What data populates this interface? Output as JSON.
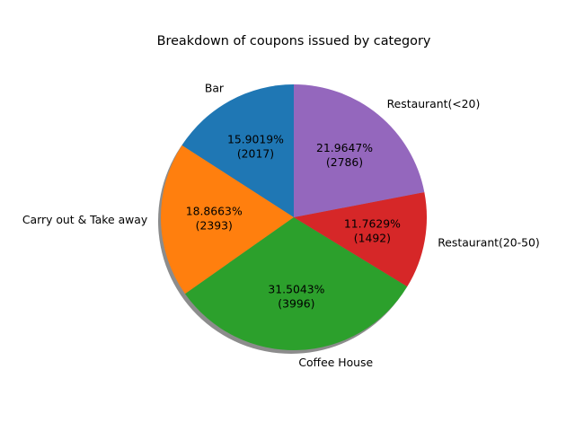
{
  "chart_data": {
    "type": "pie",
    "title": "Breakdown of coupons issued by category",
    "shadow": true,
    "start": "top, counter-clockwise",
    "slices": [
      {
        "label": "Bar",
        "value": 2017,
        "pct_text": "15.9019%",
        "count_text": "(2017)",
        "color": "#1f77b4"
      },
      {
        "label": "Carry out & Take away",
        "value": 2393,
        "pct_text": "18.8663%",
        "count_text": "(2393)",
        "color": "#ff7f0e"
      },
      {
        "label": "Coffee House",
        "value": 3996,
        "pct_text": "31.5043%",
        "count_text": "(3996)",
        "color": "#2ca02c"
      },
      {
        "label": "Restaurant(20-50)",
        "value": 1492,
        "pct_text": "11.7629%",
        "count_text": "(1492)",
        "color": "#d62728"
      },
      {
        "label": "Restaurant(<20)",
        "value": 2786,
        "pct_text": "21.9647%",
        "count_text": "(2786)",
        "color": "#9467bd"
      }
    ]
  }
}
